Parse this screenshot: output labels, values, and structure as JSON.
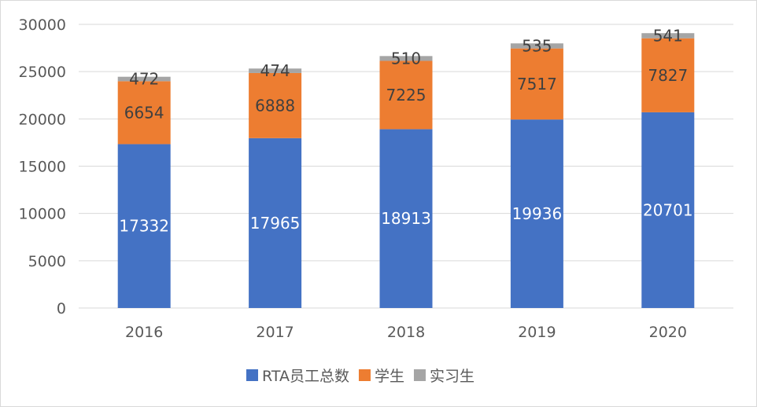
{
  "chart_data": {
    "type": "bar",
    "stacked": true,
    "title": "",
    "xlabel": "",
    "ylabel": "",
    "ylim": [
      0,
      30000
    ],
    "yticks": [
      0,
      5000,
      10000,
      15000,
      20000,
      25000,
      30000
    ],
    "grid": true,
    "legend_position": "bottom",
    "categories": [
      "2016",
      "2017",
      "2018",
      "2019",
      "2020"
    ],
    "series": [
      {
        "name": "RTA员工总数",
        "color": "#4472c4",
        "label_color": "#ffffff",
        "values": [
          17332,
          17965,
          18913,
          19936,
          20701
        ]
      },
      {
        "name": "学生",
        "color": "#ed7d31",
        "label_color": "#404040",
        "values": [
          6654,
          6888,
          7225,
          7517,
          7827
        ]
      },
      {
        "name": "实习生",
        "color": "#a5a5a5",
        "label_color": "#404040",
        "values": [
          472,
          474,
          510,
          535,
          541
        ]
      }
    ]
  }
}
